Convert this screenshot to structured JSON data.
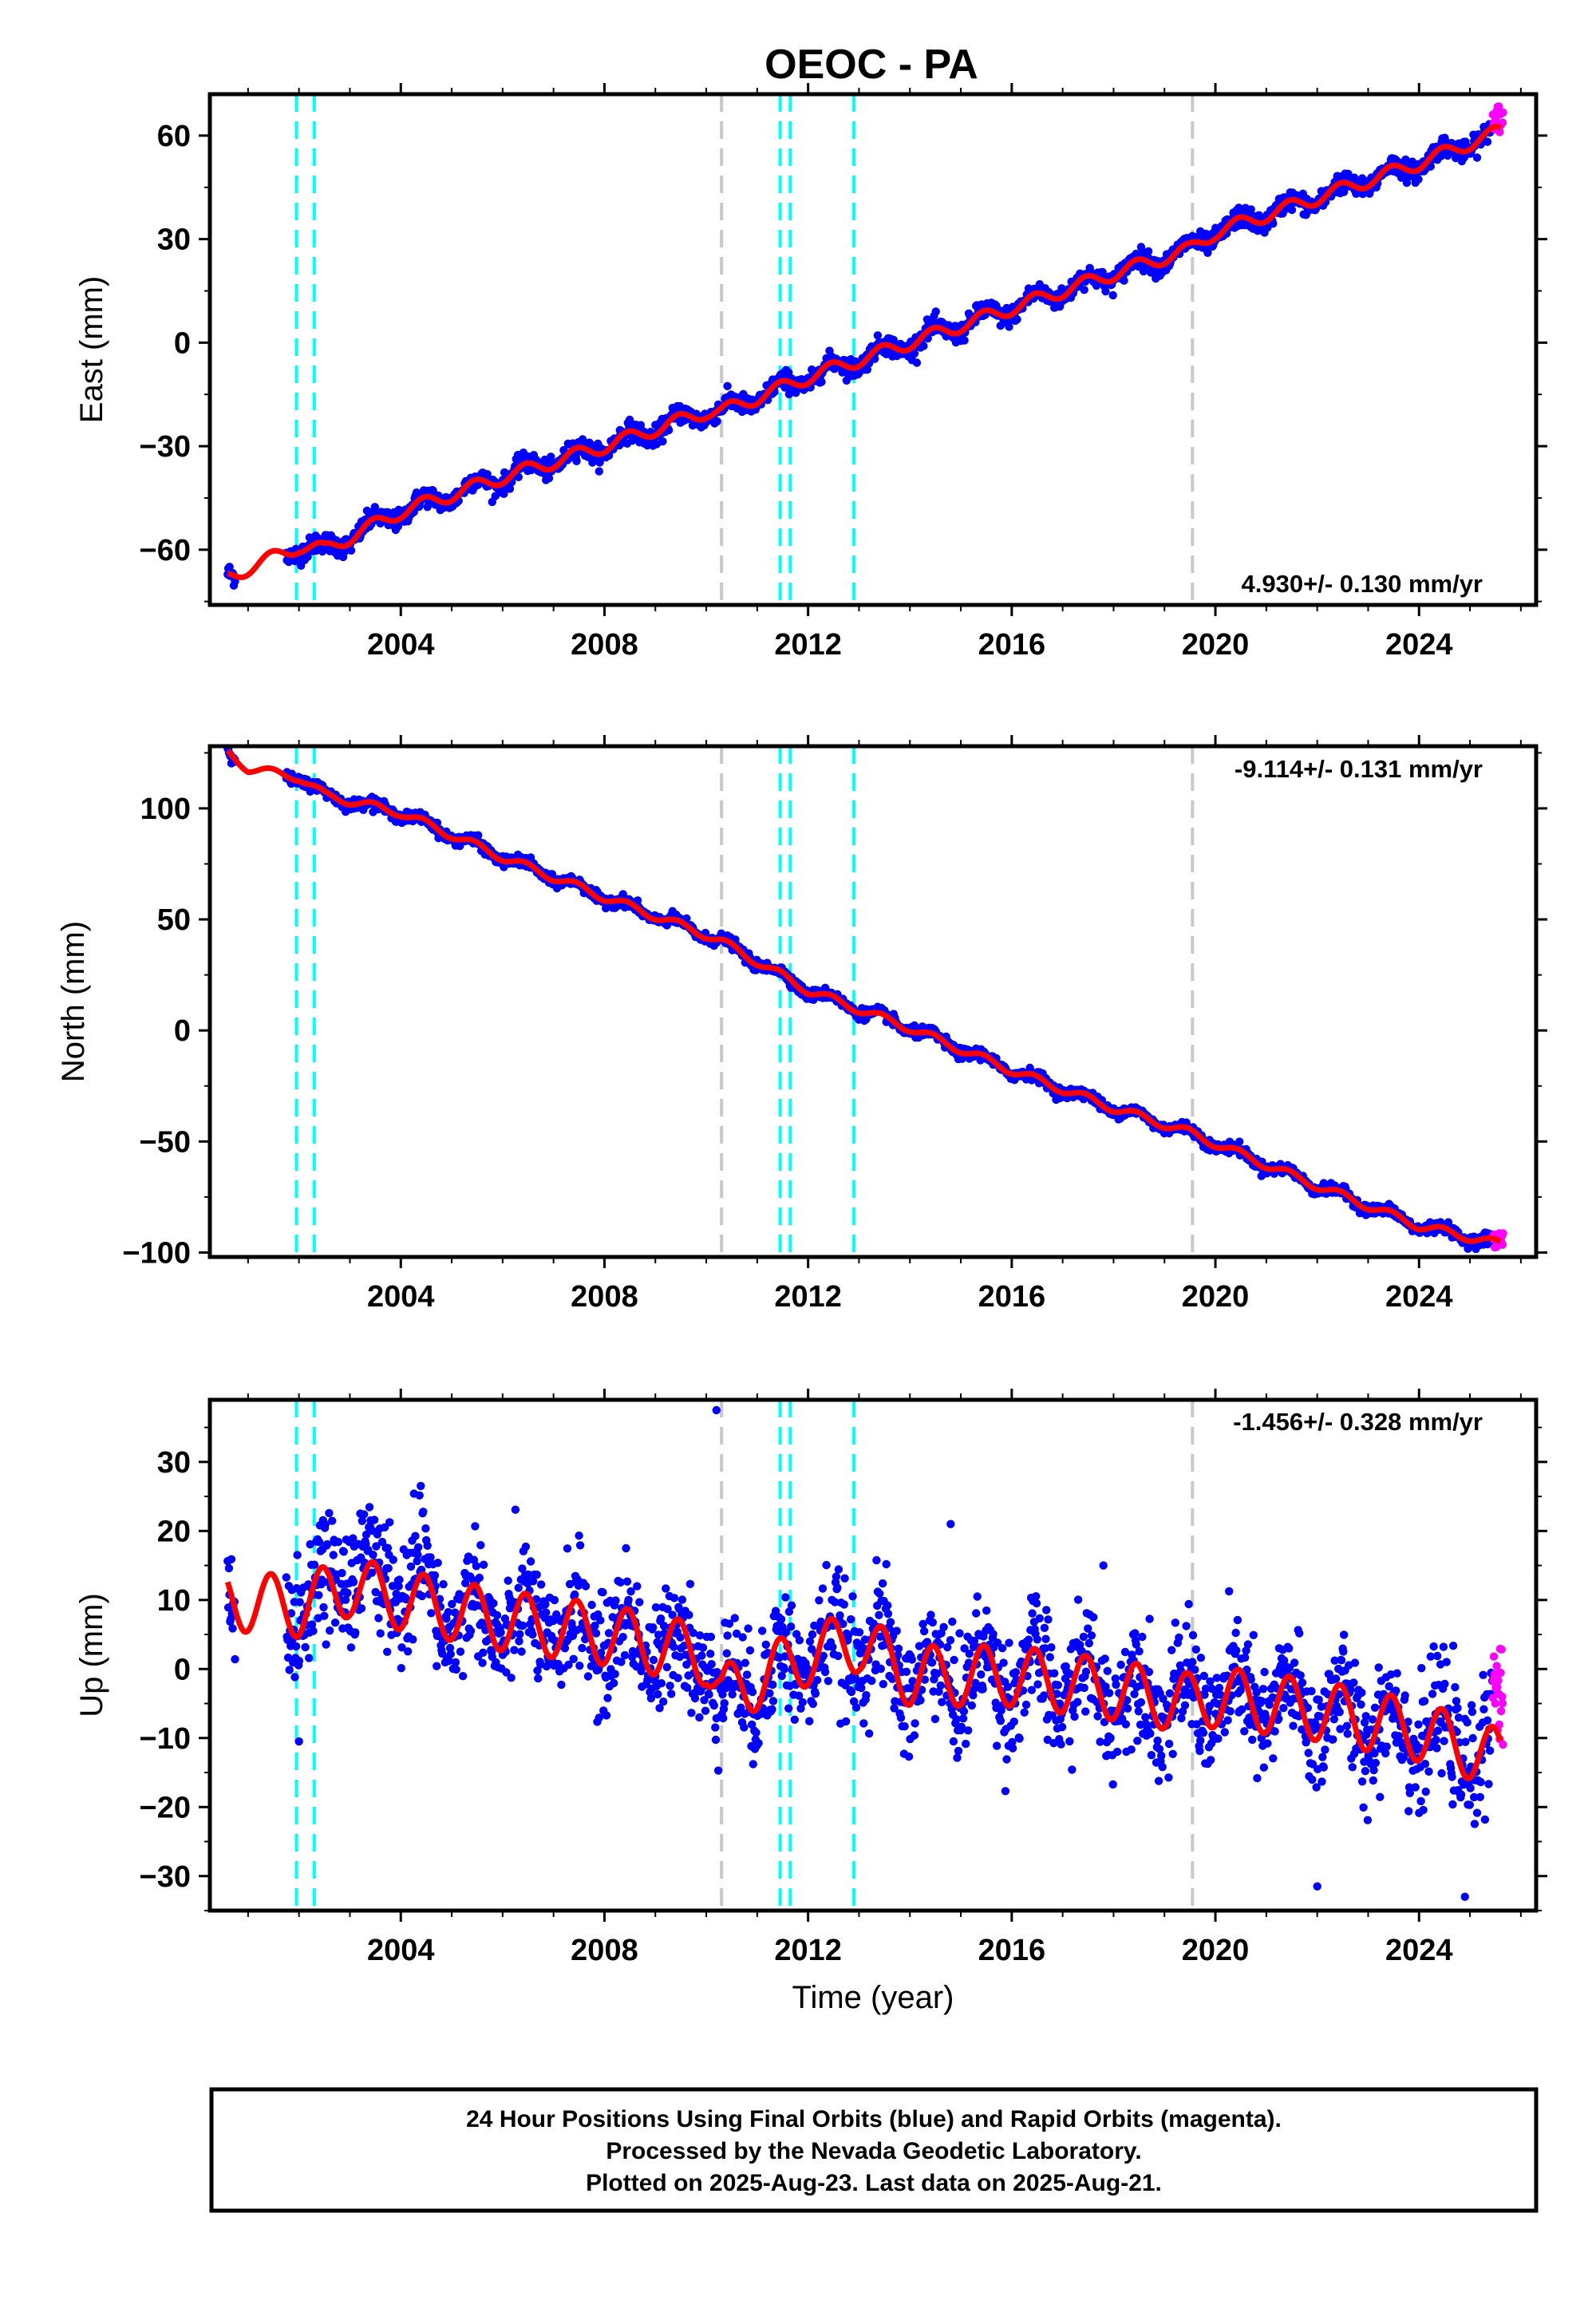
{
  "title": "OEOC - PA",
  "chart_data": [
    {
      "type": "scatter",
      "panel": "east",
      "ylabel": "East (mm)",
      "xlabel": "",
      "xlim": [
        2000.25,
        2026.3
      ],
      "ylim": [
        -76,
        72
      ],
      "yticks": [
        -60,
        -30,
        0,
        30,
        60
      ],
      "ytick_labels": [
        "−60",
        "−30",
        "0",
        "30",
        "60"
      ],
      "xticks": [
        2004,
        2008,
        2012,
        2016,
        2020,
        2024
      ],
      "xtick_labels": [
        "2004",
        "2008",
        "2012",
        "2016",
        "2020",
        "2024"
      ],
      "rate_label": "4.930+/- 0.130 mm/yr",
      "rate_position": "bottom-right",
      "trend": {
        "ref_year": 2000.6,
        "ref_value": -68,
        "rate": 4.93
      },
      "model_curve": [
        [
          2000.6,
          -68
        ],
        [
          2002.0,
          -59
        ],
        [
          2002.5,
          -60
        ],
        [
          2004,
          -49
        ],
        [
          2006,
          -39
        ],
        [
          2008,
          -30
        ],
        [
          2010,
          -20
        ],
        [
          2010.3,
          -20
        ],
        [
          2012,
          -10
        ],
        [
          2014,
          0
        ],
        [
          2016,
          10
        ],
        [
          2018,
          20
        ],
        [
          2019.5,
          27
        ],
        [
          2020,
          32
        ],
        [
          2022,
          42
        ],
        [
          2024,
          52
        ],
        [
          2025.55,
          61
        ]
      ],
      "rapid_range": {
        "x": [
          2025.45,
          2025.65
        ],
        "y": [
          61,
          69
        ]
      },
      "vlines": [
        {
          "x": 2001.95,
          "color": "#00ffff"
        },
        {
          "x": 2002.3,
          "color": "#00ffff"
        },
        {
          "x": 2010.3,
          "color": "#c8c8c8"
        },
        {
          "x": 2011.45,
          "color": "#00ffff"
        },
        {
          "x": 2011.65,
          "color": "#00ffff"
        },
        {
          "x": 2012.9,
          "color": "#00ffff"
        },
        {
          "x": 2019.55,
          "color": "#c8c8c8"
        }
      ]
    },
    {
      "type": "scatter",
      "panel": "north",
      "ylabel": "North (mm)",
      "xlabel": "",
      "xlim": [
        2000.25,
        2026.3
      ],
      "ylim": [
        -102,
        128
      ],
      "yticks": [
        -100,
        -50,
        0,
        50,
        100
      ],
      "ytick_labels": [
        "−100",
        "−50",
        "0",
        "50",
        "100"
      ],
      "xticks": [
        2004,
        2008,
        2012,
        2016,
        2020,
        2024
      ],
      "xtick_labels": [
        "2004",
        "2008",
        "2012",
        "2016",
        "2020",
        "2024"
      ],
      "rate_label": "-9.114+/- 0.131 mm/yr",
      "rate_position": "top-right",
      "trend": {
        "ref_year": 2000.6,
        "ref_value": 124,
        "rate": -9.114
      },
      "model_curve": [
        [
          2000.6,
          125
        ],
        [
          2001,
          118
        ],
        [
          2002,
          114
        ],
        [
          2002.5,
          106
        ],
        [
          2004,
          98
        ],
        [
          2006,
          78
        ],
        [
          2008,
          60
        ],
        [
          2010,
          43
        ],
        [
          2010.3,
          40
        ],
        [
          2012,
          18
        ],
        [
          2014,
          1
        ],
        [
          2016,
          -18
        ],
        [
          2018,
          -35
        ],
        [
          2019.5,
          -46
        ],
        [
          2020,
          -51
        ],
        [
          2022,
          -70
        ],
        [
          2024,
          -88
        ],
        [
          2025.55,
          -96
        ]
      ],
      "rapid_range": {
        "x": [
          2025.45,
          2025.65
        ],
        "y": [
          -98,
          -91
        ]
      },
      "vlines": [
        {
          "x": 2001.95,
          "color": "#00ffff"
        },
        {
          "x": 2002.3,
          "color": "#00ffff"
        },
        {
          "x": 2010.3,
          "color": "#c8c8c8"
        },
        {
          "x": 2011.45,
          "color": "#00ffff"
        },
        {
          "x": 2011.65,
          "color": "#00ffff"
        },
        {
          "x": 2012.9,
          "color": "#00ffff"
        },
        {
          "x": 2019.55,
          "color": "#c8c8c8"
        }
      ]
    },
    {
      "type": "scatter",
      "panel": "up",
      "ylabel": "Up (mm)",
      "xlabel": "Time (year)",
      "xlim": [
        2000.25,
        2026.3
      ],
      "ylim": [
        -35,
        39
      ],
      "yticks": [
        -30,
        -20,
        -10,
        0,
        10,
        20,
        30
      ],
      "ytick_labels": [
        "−30",
        "−20",
        "−10",
        "0",
        "10",
        "20",
        "30"
      ],
      "xticks": [
        2004,
        2008,
        2012,
        2016,
        2020,
        2024
      ],
      "xtick_labels": [
        "2004",
        "2008",
        "2012",
        "2016",
        "2020",
        "2024"
      ],
      "rate_label": "-1.456+/- 0.328 mm/yr",
      "rate_position": "top-right",
      "trend": {
        "ref_year": 2000.6,
        "ref_value": 10,
        "rate": -1.456
      },
      "model_curve": [
        [
          2000.6,
          10
        ],
        [
          2002,
          9
        ],
        [
          2003,
          12
        ],
        [
          2004,
          10
        ],
        [
          2006,
          7
        ],
        [
          2008,
          5
        ],
        [
          2010,
          2
        ],
        [
          2010.3,
          -4
        ],
        [
          2012,
          2
        ],
        [
          2013,
          4
        ],
        [
          2014,
          -1
        ],
        [
          2016,
          -1
        ],
        [
          2018,
          -3
        ],
        [
          2019.5,
          -5
        ],
        [
          2020,
          -4
        ],
        [
          2022,
          -6
        ],
        [
          2024,
          -9
        ],
        [
          2025.55,
          -13
        ]
      ],
      "rapid_range": {
        "x": [
          2025.45,
          2025.65
        ],
        "y": [
          -12,
          3
        ]
      },
      "outliers": [
        [
          2010.2,
          37.5
        ],
        [
          2002.0,
          -10.5
        ],
        [
          2022.0,
          -31.5
        ],
        [
          2024.9,
          -33
        ],
        [
          2017.8,
          15
        ],
        [
          2014.8,
          21
        ]
      ],
      "vlines": [
        {
          "x": 2001.95,
          "color": "#00ffff"
        },
        {
          "x": 2002.3,
          "color": "#00ffff"
        },
        {
          "x": 2010.3,
          "color": "#c8c8c8"
        },
        {
          "x": 2011.45,
          "color": "#00ffff"
        },
        {
          "x": 2011.65,
          "color": "#00ffff"
        },
        {
          "x": 2012.9,
          "color": "#00ffff"
        },
        {
          "x": 2019.55,
          "color": "#c8c8c8"
        }
      ]
    }
  ],
  "colors": {
    "final_orbits": "#0000ff",
    "rapid_orbits": "#ff00ff",
    "model": "#ff0000",
    "offset_equipment": "#00ffff",
    "offset_other": "#c8c8c8"
  },
  "footer": {
    "line1": "24 Hour Positions Using Final Orbits (blue) and Rapid Orbits (magenta).",
    "line2": "Processed by the Nevada Geodetic Laboratory.",
    "line3": "Plotted on 2025-Aug-23. Last data on 2025-Aug-21."
  }
}
